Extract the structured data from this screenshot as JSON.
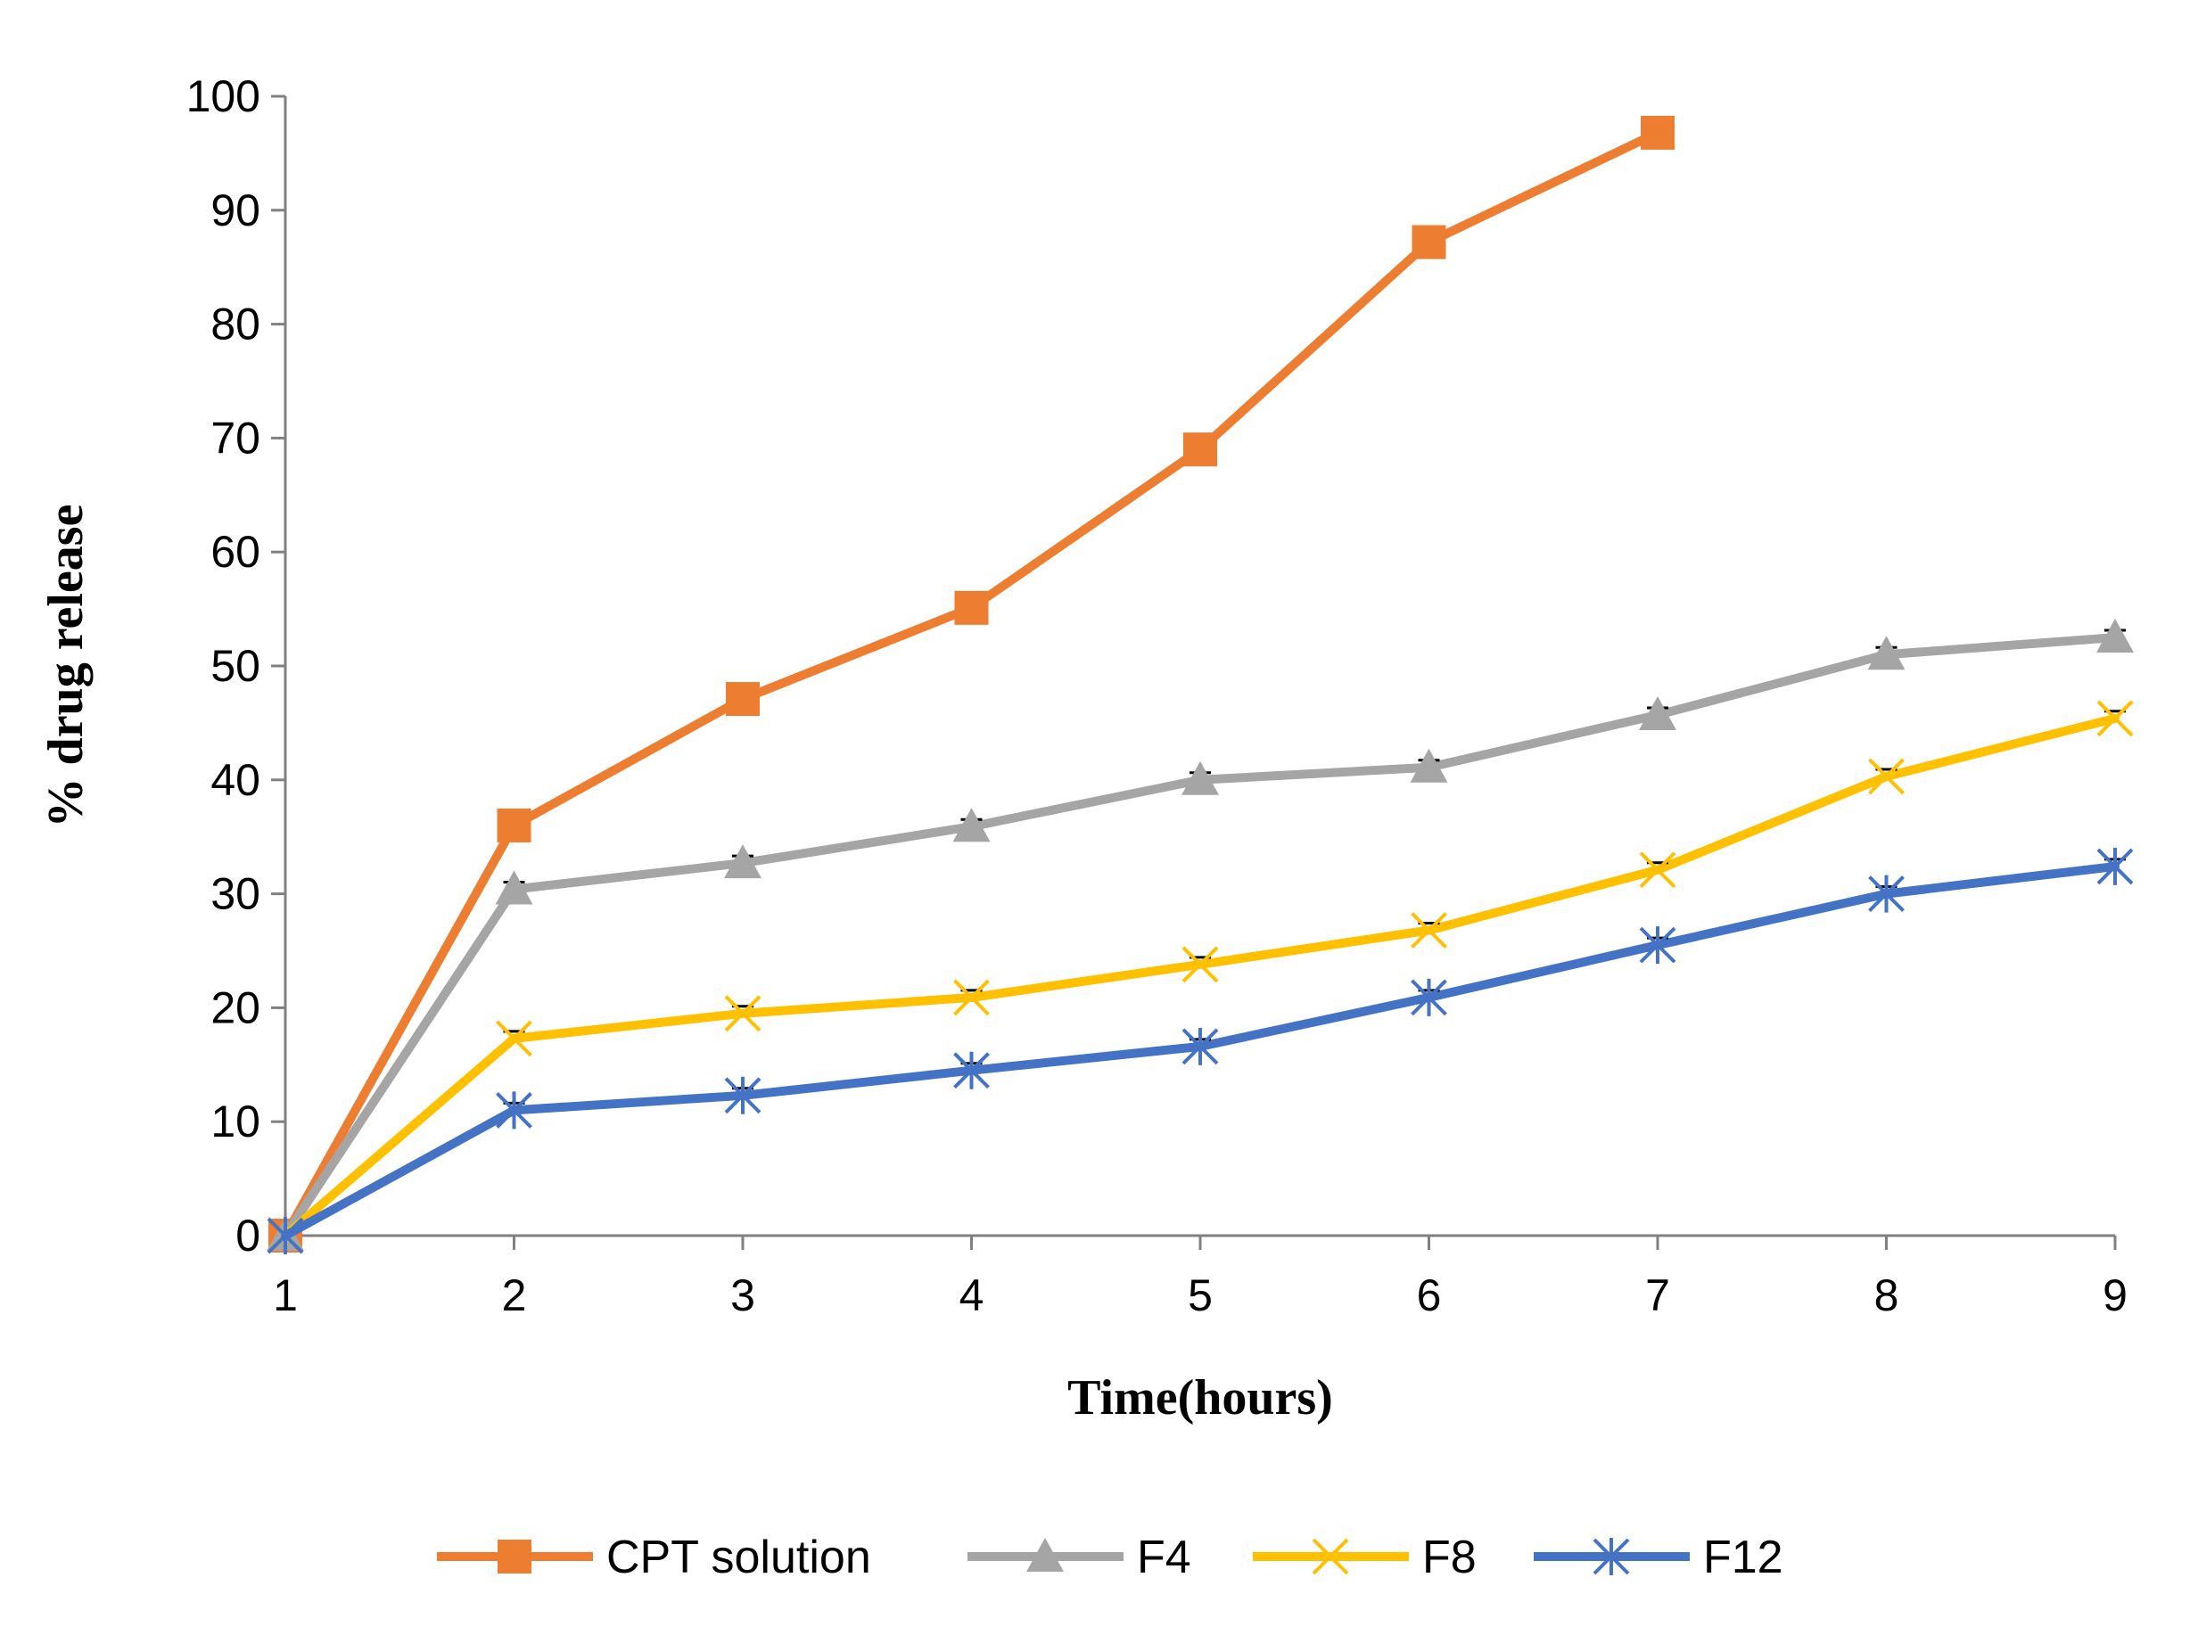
{
  "chart_data": {
    "type": "line",
    "title": "",
    "xlabel": "Time(hours)",
    "ylabel": "% drug release",
    "categories": [
      "1",
      "2",
      "3",
      "4",
      "5",
      "6",
      "7",
      "8",
      "9"
    ],
    "ylim": [
      0,
      100
    ],
    "yticks": [
      "0",
      "10",
      "20",
      "30",
      "40",
      "50",
      "60",
      "70",
      "80",
      "90",
      "100"
    ],
    "grid": false,
    "legend_position": "bottom",
    "series": [
      {
        "name": "CPT solution",
        "marker": "square",
        "color": "#ED7D31",
        "values": [
          0,
          36,
          47.1,
          55.1,
          69,
          87.2,
          96.8,
          null,
          null
        ]
      },
      {
        "name": "F4",
        "marker": "triangle",
        "color": "#A5A5A5",
        "values": [
          0,
          30.4,
          32.7,
          35.9,
          40,
          41.1,
          45.7,
          51,
          52.5
        ]
      },
      {
        "name": "F8",
        "marker": "x",
        "color": "#FFC000",
        "values": [
          0,
          17.3,
          19.5,
          20.9,
          23.8,
          26.8,
          32.1,
          40.3,
          45.4
        ]
      },
      {
        "name": "F12",
        "marker": "star",
        "color": "#4472C4",
        "values": [
          0,
          11,
          12.3,
          14.5,
          16.6,
          20.9,
          25.5,
          30,
          32.4
        ]
      }
    ]
  }
}
